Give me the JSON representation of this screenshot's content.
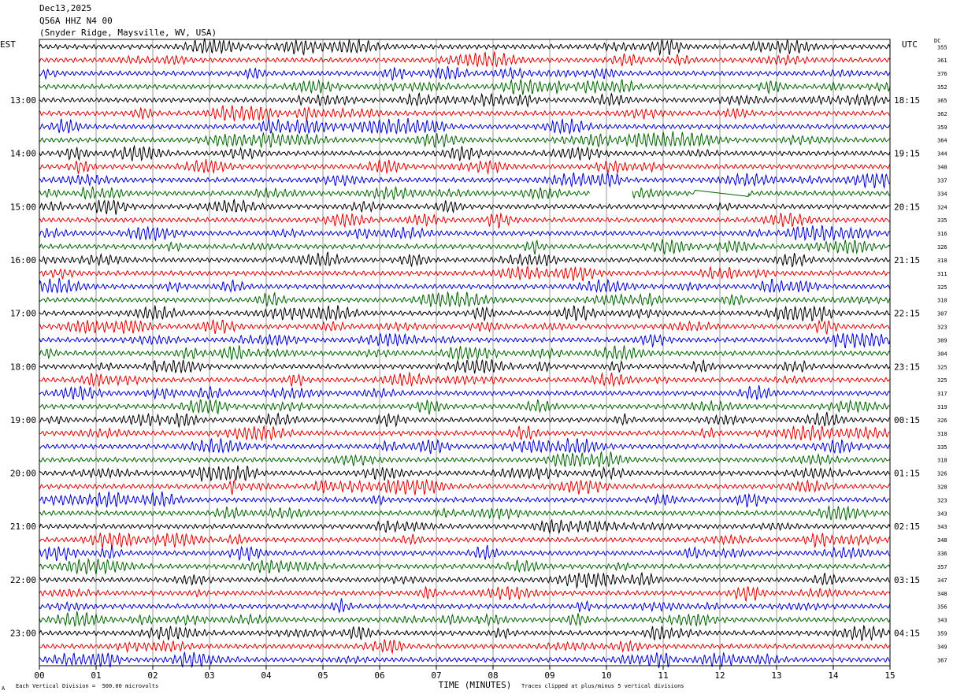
{
  "header": {
    "date": "Dec13,2025",
    "station": "Q56A HHZ N4 00",
    "location": "(Snyder Ridge, Maysville, WV, USA)"
  },
  "left_timezone": "EST",
  "right_timezone": "UTC",
  "dc_header": "DC",
  "footer": {
    "scale_note": "Each Vertical Division =  500.00 microvolts",
    "clip_note": "Traces clipped at plus/minus 5 vertical divisions",
    "corner_mark": "A"
  },
  "colors": {
    "trace_cycle": [
      "#000000",
      "#dd0000",
      "#0000cc",
      "#006400"
    ],
    "grid": "#9a9a9a",
    "background": "#ffffff"
  },
  "chart_data": {
    "type": "line",
    "xlabel": "TIME (MINUTES)",
    "x_ticks": [
      "00",
      "01",
      "02",
      "03",
      "04",
      "05",
      "06",
      "07",
      "08",
      "09",
      "10",
      "11",
      "12",
      "13",
      "14",
      "15"
    ],
    "xlim": [
      0,
      15
    ],
    "lines_per_hour": 4,
    "minutes_per_line": 15,
    "left_hour_labels": [
      "13:00",
      "14:00",
      "15:00",
      "16:00",
      "17:00",
      "18:00",
      "19:00",
      "20:00",
      "21:00",
      "22:00",
      "23:00"
    ],
    "right_hour_labels": [
      "18:15",
      "19:15",
      "20:15",
      "21:15",
      "22:15",
      "23:15",
      "00:15",
      "01:15",
      "02:15",
      "03:15",
      "04:15"
    ],
    "dc_values": [
      "355",
      "361",
      "376",
      "352",
      "365",
      "362",
      "359",
      "364",
      "344",
      "348",
      "337",
      "334",
      "324",
      "335",
      "316",
      "326",
      "310",
      "311",
      "325",
      "310",
      "307",
      "323",
      "309",
      "304",
      "325",
      "325",
      "317",
      "319",
      "326",
      "318",
      "335",
      "318",
      "326",
      "328",
      "323",
      "343",
      "343",
      "348",
      "336",
      "357",
      "347",
      "348",
      "356",
      "343",
      "359",
      "349",
      "367"
    ],
    "gap": {
      "line_index": 11,
      "from_minute": 9.7,
      "to_minute": 10.45
    },
    "flat_segment": {
      "line_index": 11,
      "from_minute": 11.55,
      "to_minute": 12.5
    }
  }
}
